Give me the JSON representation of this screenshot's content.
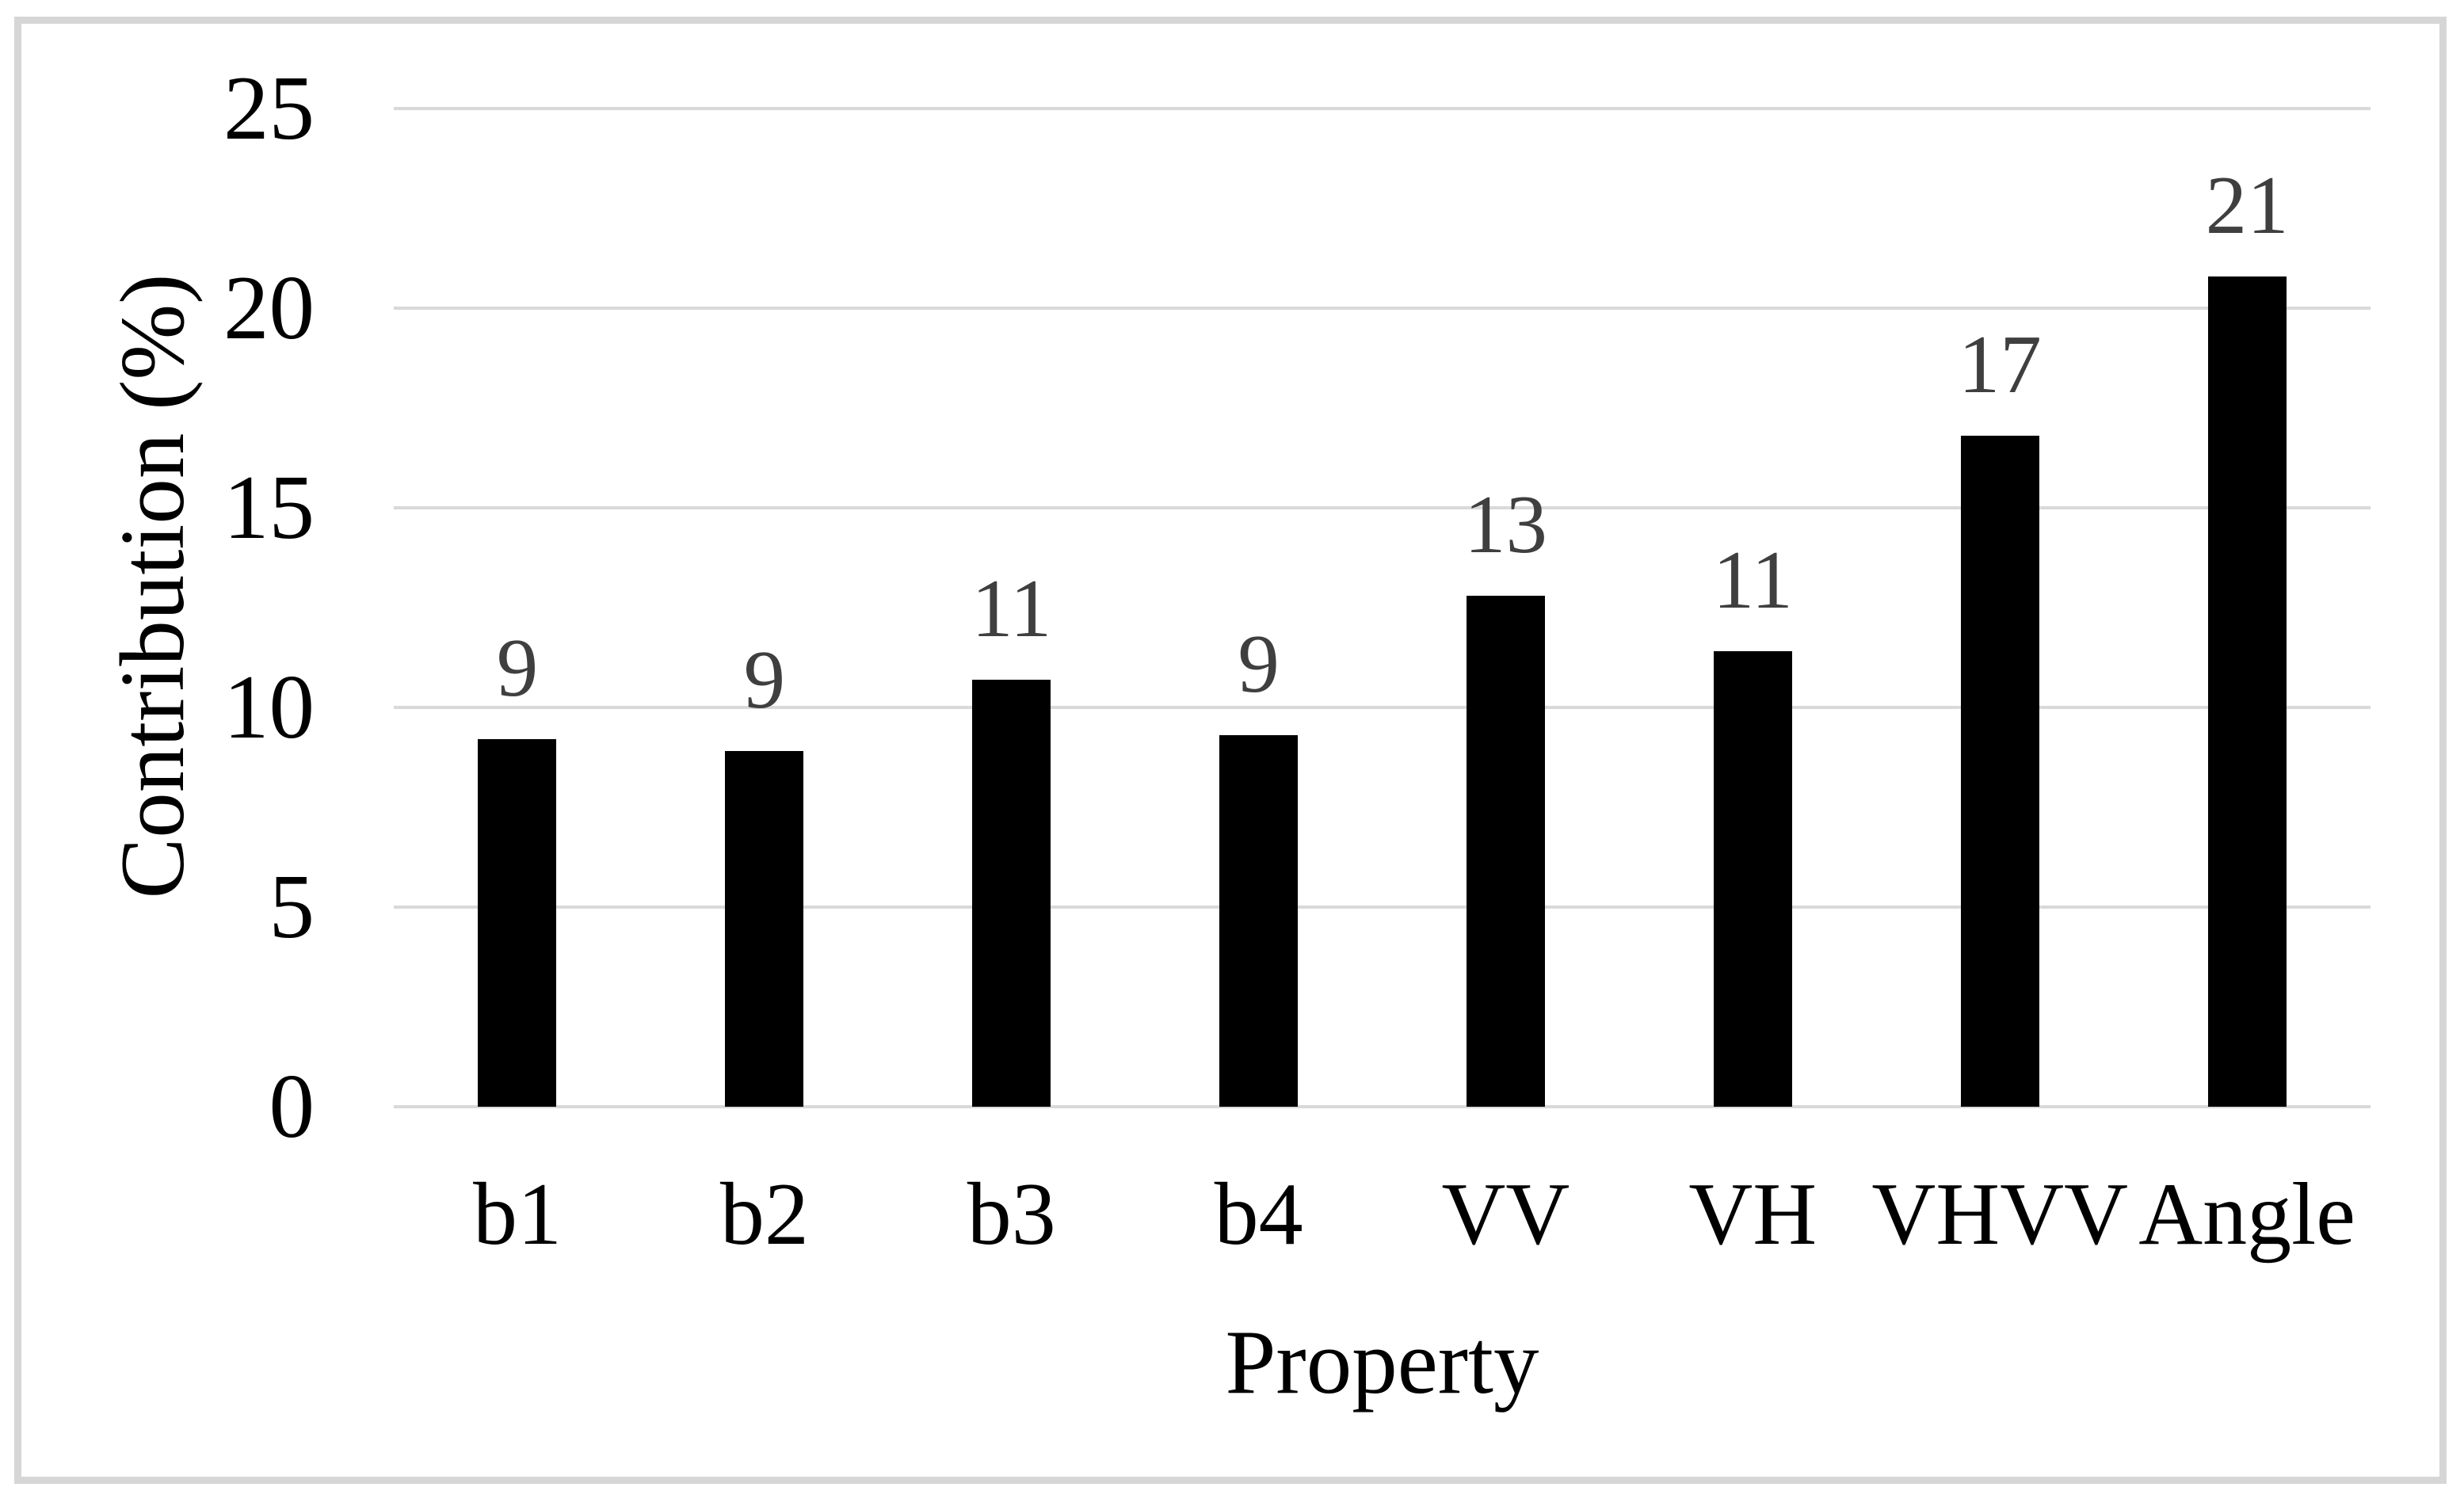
{
  "figure": {
    "background_color": "#ffffff",
    "border_color": "#d6d6d6"
  },
  "chart_data": {
    "type": "bar",
    "title": "",
    "categories": [
      "b1",
      "b2",
      "b3",
      "b4",
      "VV",
      "VH",
      "VHVV",
      "Angle"
    ],
    "values": [
      9.2,
      8.9,
      10.7,
      9.3,
      12.8,
      11.4,
      16.8,
      20.8
    ],
    "data_labels": [
      "9",
      "9",
      "11",
      "9",
      "13",
      "11",
      "17",
      "21"
    ],
    "series_name": "Contribution",
    "xlabel": "Property",
    "ylabel": "Contribution (%)",
    "ylim": [
      0,
      25
    ],
    "yticks": [
      0,
      5,
      10,
      15,
      20,
      25
    ],
    "grid": "horizontal",
    "legend": "none",
    "bar_color": "#000000",
    "gridline_color": "#d9d9d9",
    "axis_text_color": "#000000",
    "data_label_color": "#3f3f3f"
  }
}
